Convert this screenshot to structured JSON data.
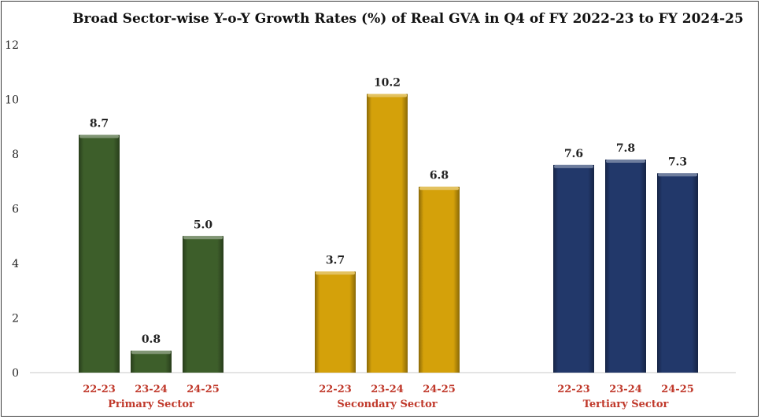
{
  "chart_data": {
    "type": "bar",
    "title": "Broad Sector-wise Y-o-Y Growth Rates (%) of Real GVA in Q4 of FY 2022-23 to FY 2024-25",
    "xlabel": "",
    "ylabel": "",
    "ylim": [
      0,
      12
    ],
    "yticks": [
      "0",
      "2",
      "4",
      "6",
      "8",
      "10",
      "12"
    ],
    "grid": false,
    "groups": [
      {
        "name": "Primary Sector",
        "color": "#3d5e2a",
        "categories": [
          "22-23",
          "23-24",
          "24-25"
        ],
        "values": [
          8.7,
          0.8,
          5.0
        ],
        "labels": [
          "8.7",
          "0.8",
          "5.0"
        ]
      },
      {
        "name": "Secondary Sector",
        "color": "#d4a10a",
        "categories": [
          "22-23",
          "23-24",
          "24-25"
        ],
        "values": [
          3.7,
          10.2,
          6.8
        ],
        "labels": [
          "3.7",
          "10.2",
          "6.8"
        ]
      },
      {
        "name": "Tertiary Sector",
        "color": "#22386a",
        "categories": [
          "22-23",
          "23-24",
          "24-25"
        ],
        "values": [
          7.6,
          7.8,
          7.3
        ],
        "labels": [
          "7.6",
          "7.8",
          "7.3"
        ]
      }
    ]
  }
}
